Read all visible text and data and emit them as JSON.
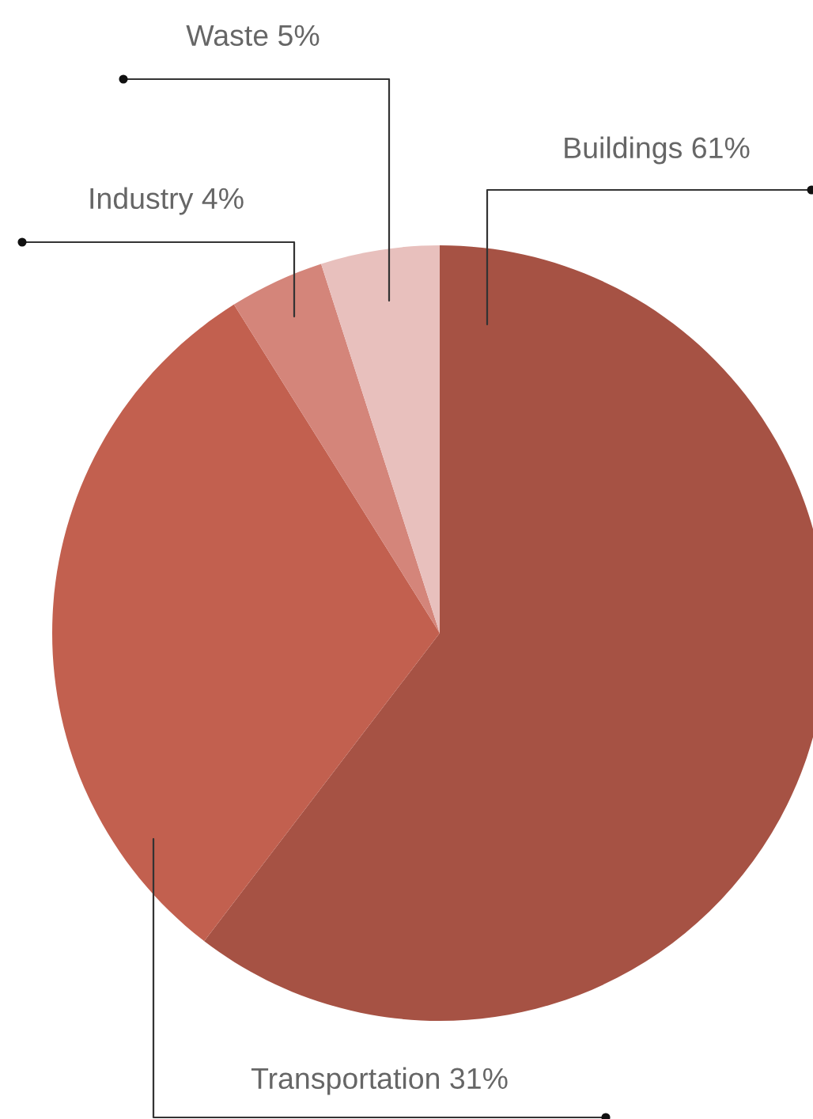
{
  "chart_data": {
    "type": "pie",
    "categories": [
      "Buildings",
      "Transportation",
      "Industry",
      "Waste"
    ],
    "values": [
      61,
      31,
      4,
      5
    ],
    "value_labels": [
      "61%",
      "31%",
      "4%",
      "5%"
    ],
    "colors": [
      "#a65244",
      "#c2604f",
      "#d4857a",
      "#e8c0bd"
    ],
    "legend": false
  }
}
